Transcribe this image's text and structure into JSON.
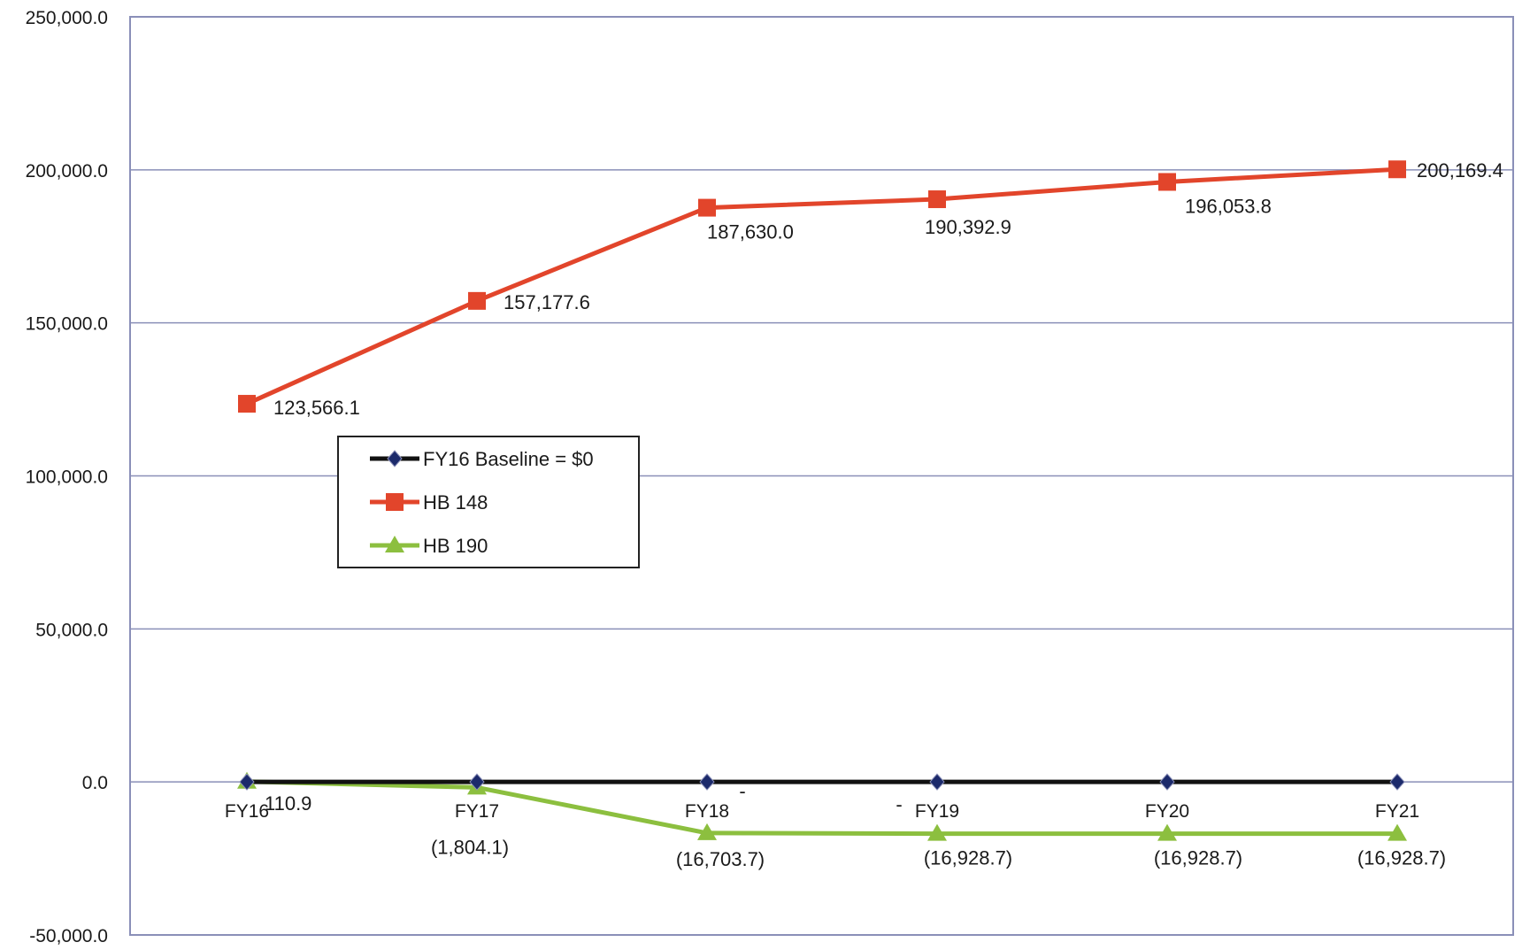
{
  "chart_data": {
    "type": "line",
    "categories": [
      "FY16",
      "FY17",
      "FY18",
      "FY19",
      "FY20",
      "FY21"
    ],
    "ylim": [
      -50000,
      250000
    ],
    "yticks": [
      {
        "value": -50000,
        "label": "-50,000.0"
      },
      {
        "value": 0,
        "label": "0.0"
      },
      {
        "value": 50000,
        "label": "50,000.0"
      },
      {
        "value": 100000,
        "label": "100,000.0"
      },
      {
        "value": 150000,
        "label": "150,000.0"
      },
      {
        "value": 200000,
        "label": "200,000.0"
      },
      {
        "value": 250000,
        "label": "250,000.0"
      }
    ],
    "grid": true,
    "legend_position": "inside-left",
    "series": [
      {
        "name": "FY16 Baseline = $0",
        "color": "#111111",
        "marker": "diamond",
        "values": [
          0,
          0,
          0,
          0,
          0,
          0
        ],
        "labels": [
          "",
          "",
          "-",
          "-",
          "",
          ""
        ]
      },
      {
        "name": "HB 148",
        "color": "#e2452b",
        "marker": "square",
        "values": [
          123566.1,
          157177.6,
          187630.0,
          190392.9,
          196053.8,
          200169.4
        ],
        "labels": [
          "123,566.1",
          "157,177.6",
          "187,630.0",
          "190,392.9",
          "196,053.8",
          "200,169.4"
        ]
      },
      {
        "name": "HB 190",
        "color": "#8cbf3f",
        "marker": "triangle",
        "values": [
          110.9,
          -1804.1,
          -16703.7,
          -16928.7,
          -16928.7,
          -16928.7
        ],
        "labels": [
          "110.9",
          "(1,804.1)",
          "(16,703.7)",
          "(16,928.7)",
          "(16,928.7)",
          "(16,928.7)"
        ]
      }
    ]
  }
}
